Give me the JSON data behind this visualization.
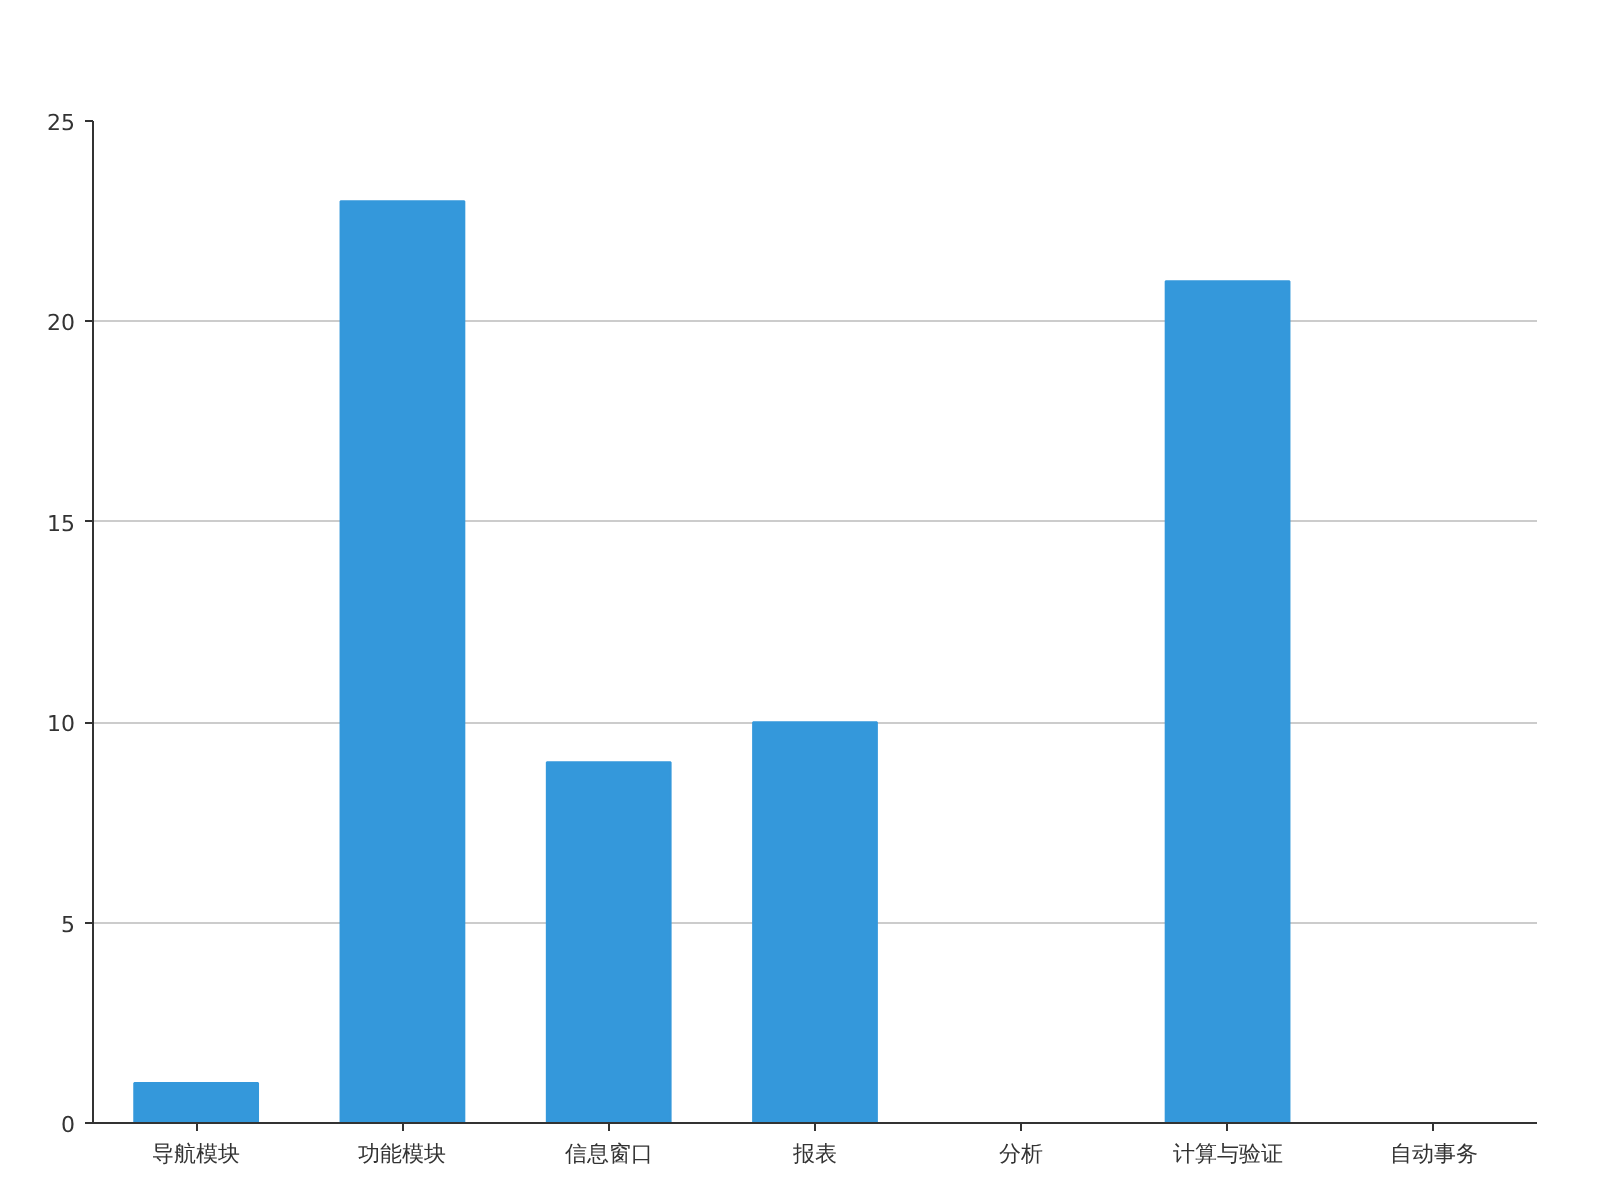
{
  "chart_data": {
    "type": "bar",
    "categories": [
      "导航模块",
      "功能模块",
      "信息窗口",
      "报表",
      "分析",
      "计算与验证",
      "自动事务"
    ],
    "values": [
      1,
      23,
      9,
      10,
      0,
      21,
      0
    ],
    "color": "#3498db",
    "ylim": [
      0,
      25
    ],
    "yticks": [
      0,
      5,
      10,
      15,
      20,
      25
    ],
    "grid": "y"
  }
}
